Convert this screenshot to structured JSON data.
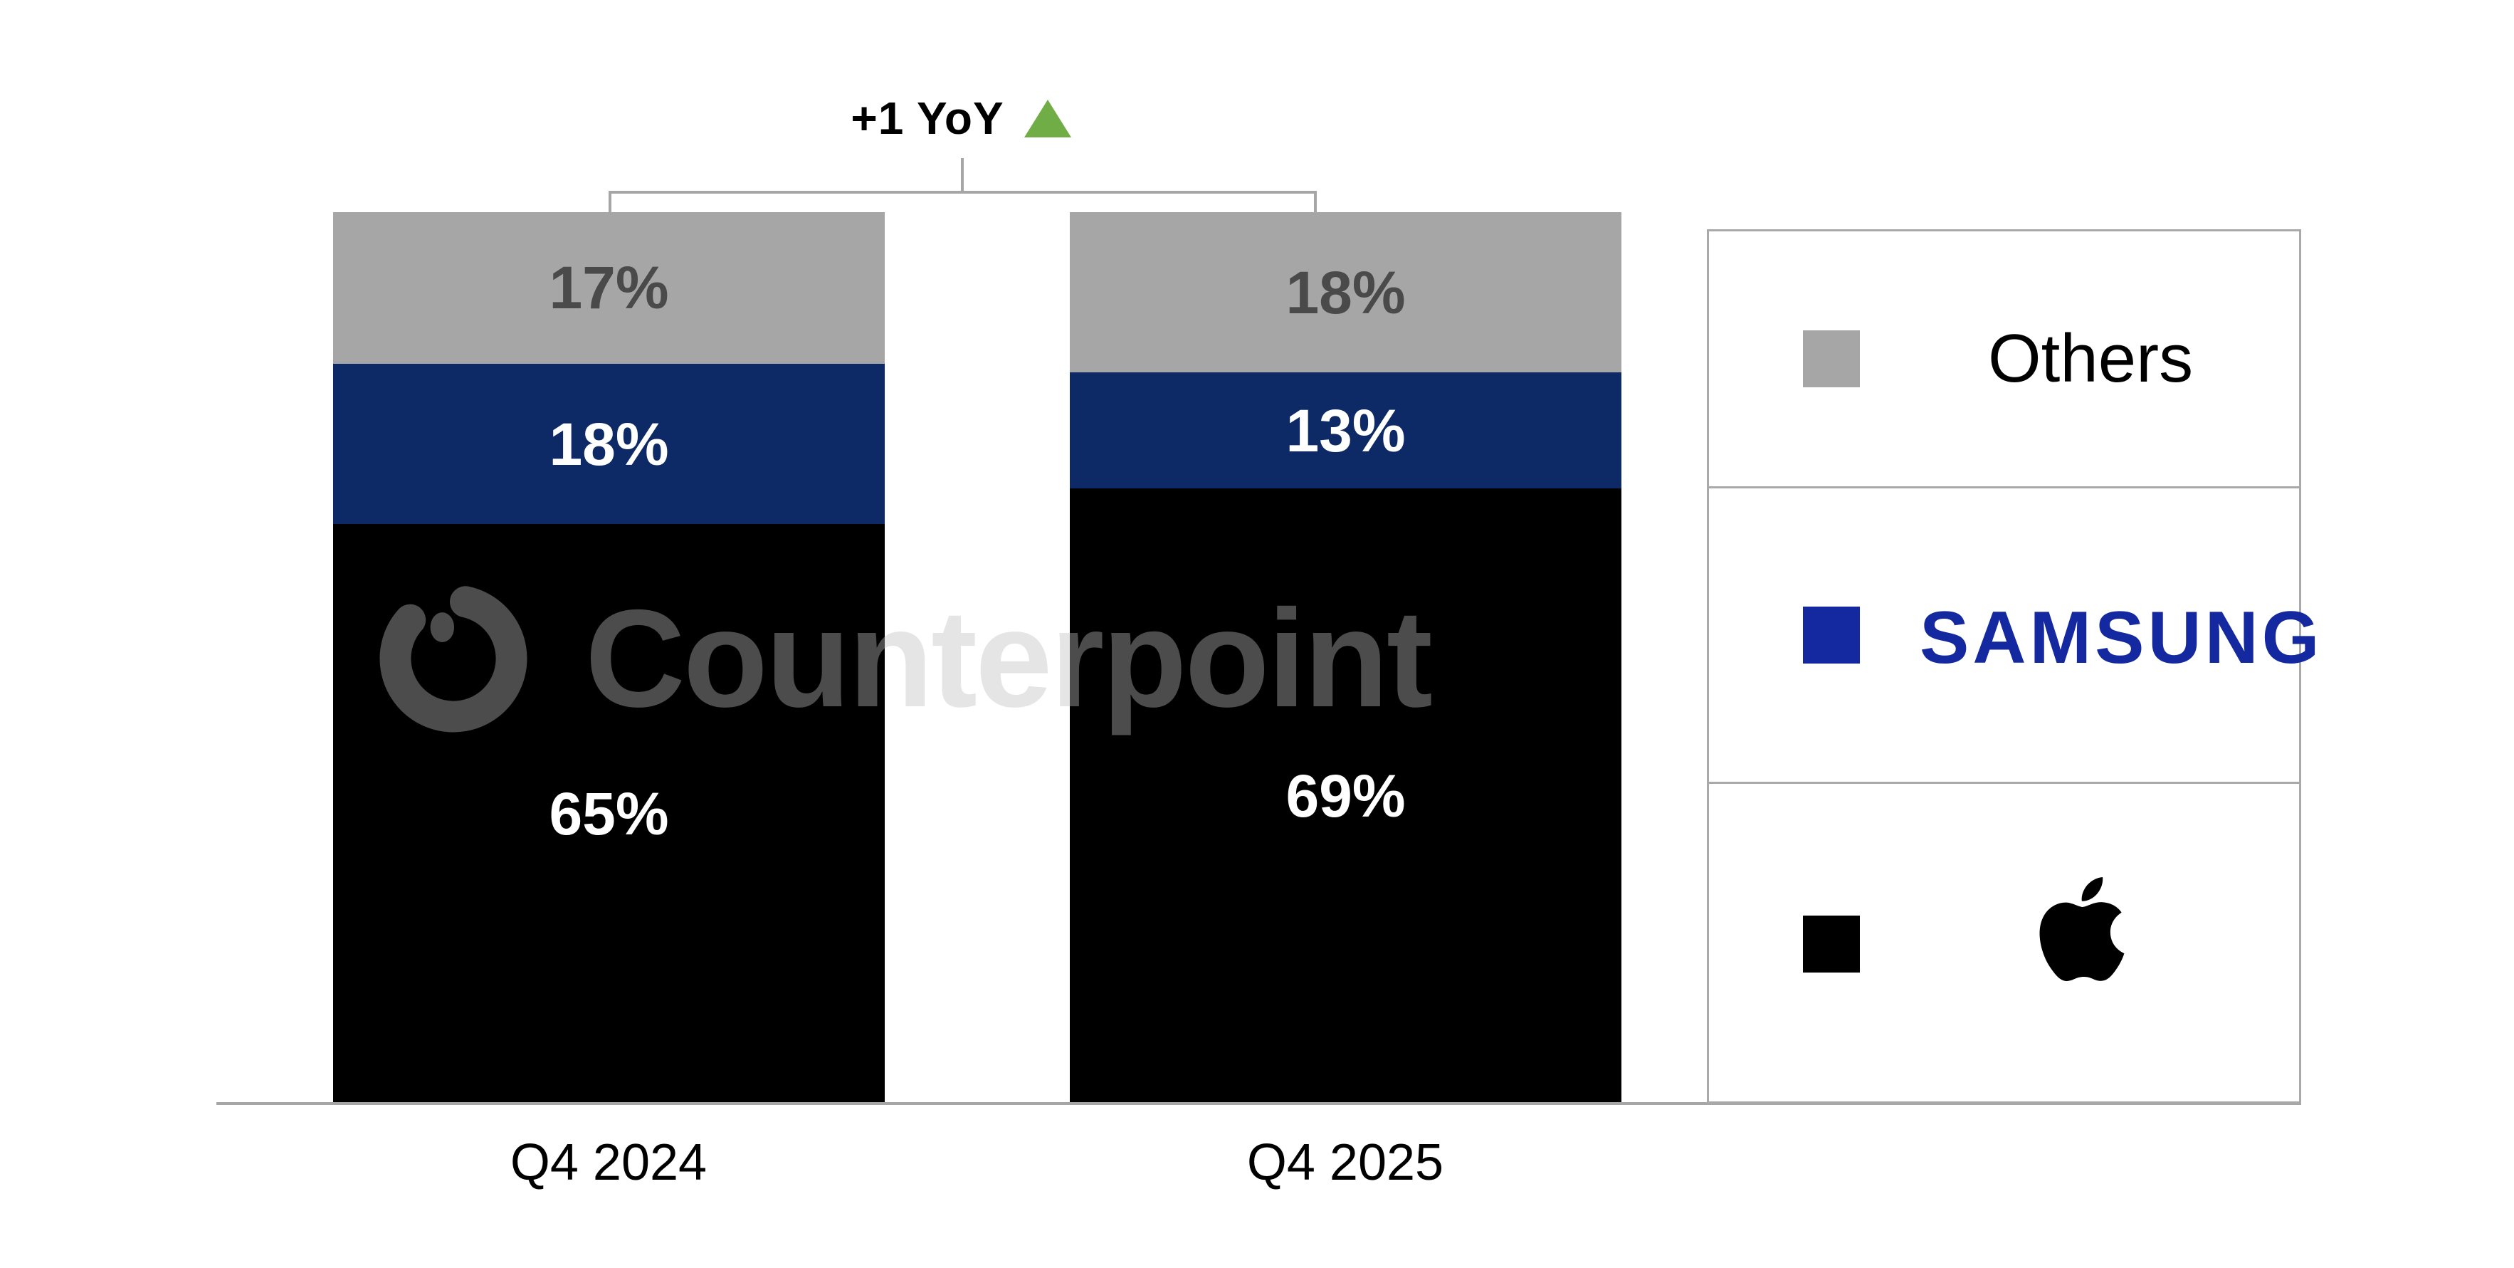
{
  "chart_data": {
    "type": "bar",
    "stacked": true,
    "categories": [
      "Q4 2024",
      "Q4 2025"
    ],
    "series": [
      {
        "name": "Apple",
        "values": [
          65,
          69
        ],
        "labels": [
          "65%",
          "69%"
        ],
        "color": "#000000",
        "label_color": "#ffffff"
      },
      {
        "name": "Samsung",
        "values": [
          18,
          13
        ],
        "labels": [
          "18%",
          "13%"
        ],
        "color": "#0e2a66",
        "label_color": "#ffffff"
      },
      {
        "name": "Others",
        "values": [
          17,
          18
        ],
        "labels": [
          "17%",
          "18%"
        ],
        "color": "#a6a6a6",
        "label_color": "#4a4a4a"
      }
    ],
    "unit": "%",
    "ylim": [
      0,
      100
    ],
    "grid": false,
    "legend_position": "right",
    "annotation": {
      "text": "+1 YoY",
      "direction": "up",
      "arrow_color": "#70ad47"
    }
  },
  "x_axis": {
    "labels": [
      "Q4 2024",
      "Q4 2025"
    ]
  },
  "legend": {
    "items": [
      {
        "id": "others",
        "label": "Others",
        "swatch_color": "#a6a6a6",
        "label_color": "#000000"
      },
      {
        "id": "samsung",
        "label": "SAMSUNG",
        "swatch_color": "#1428a0",
        "label_color": "#1428a0"
      },
      {
        "id": "apple",
        "label": "Apple",
        "swatch_color": "#000000",
        "icon": "apple-logo"
      }
    ]
  },
  "watermark": {
    "text": "Counterpoint",
    "logo": "counterpoint-ring-logo"
  }
}
